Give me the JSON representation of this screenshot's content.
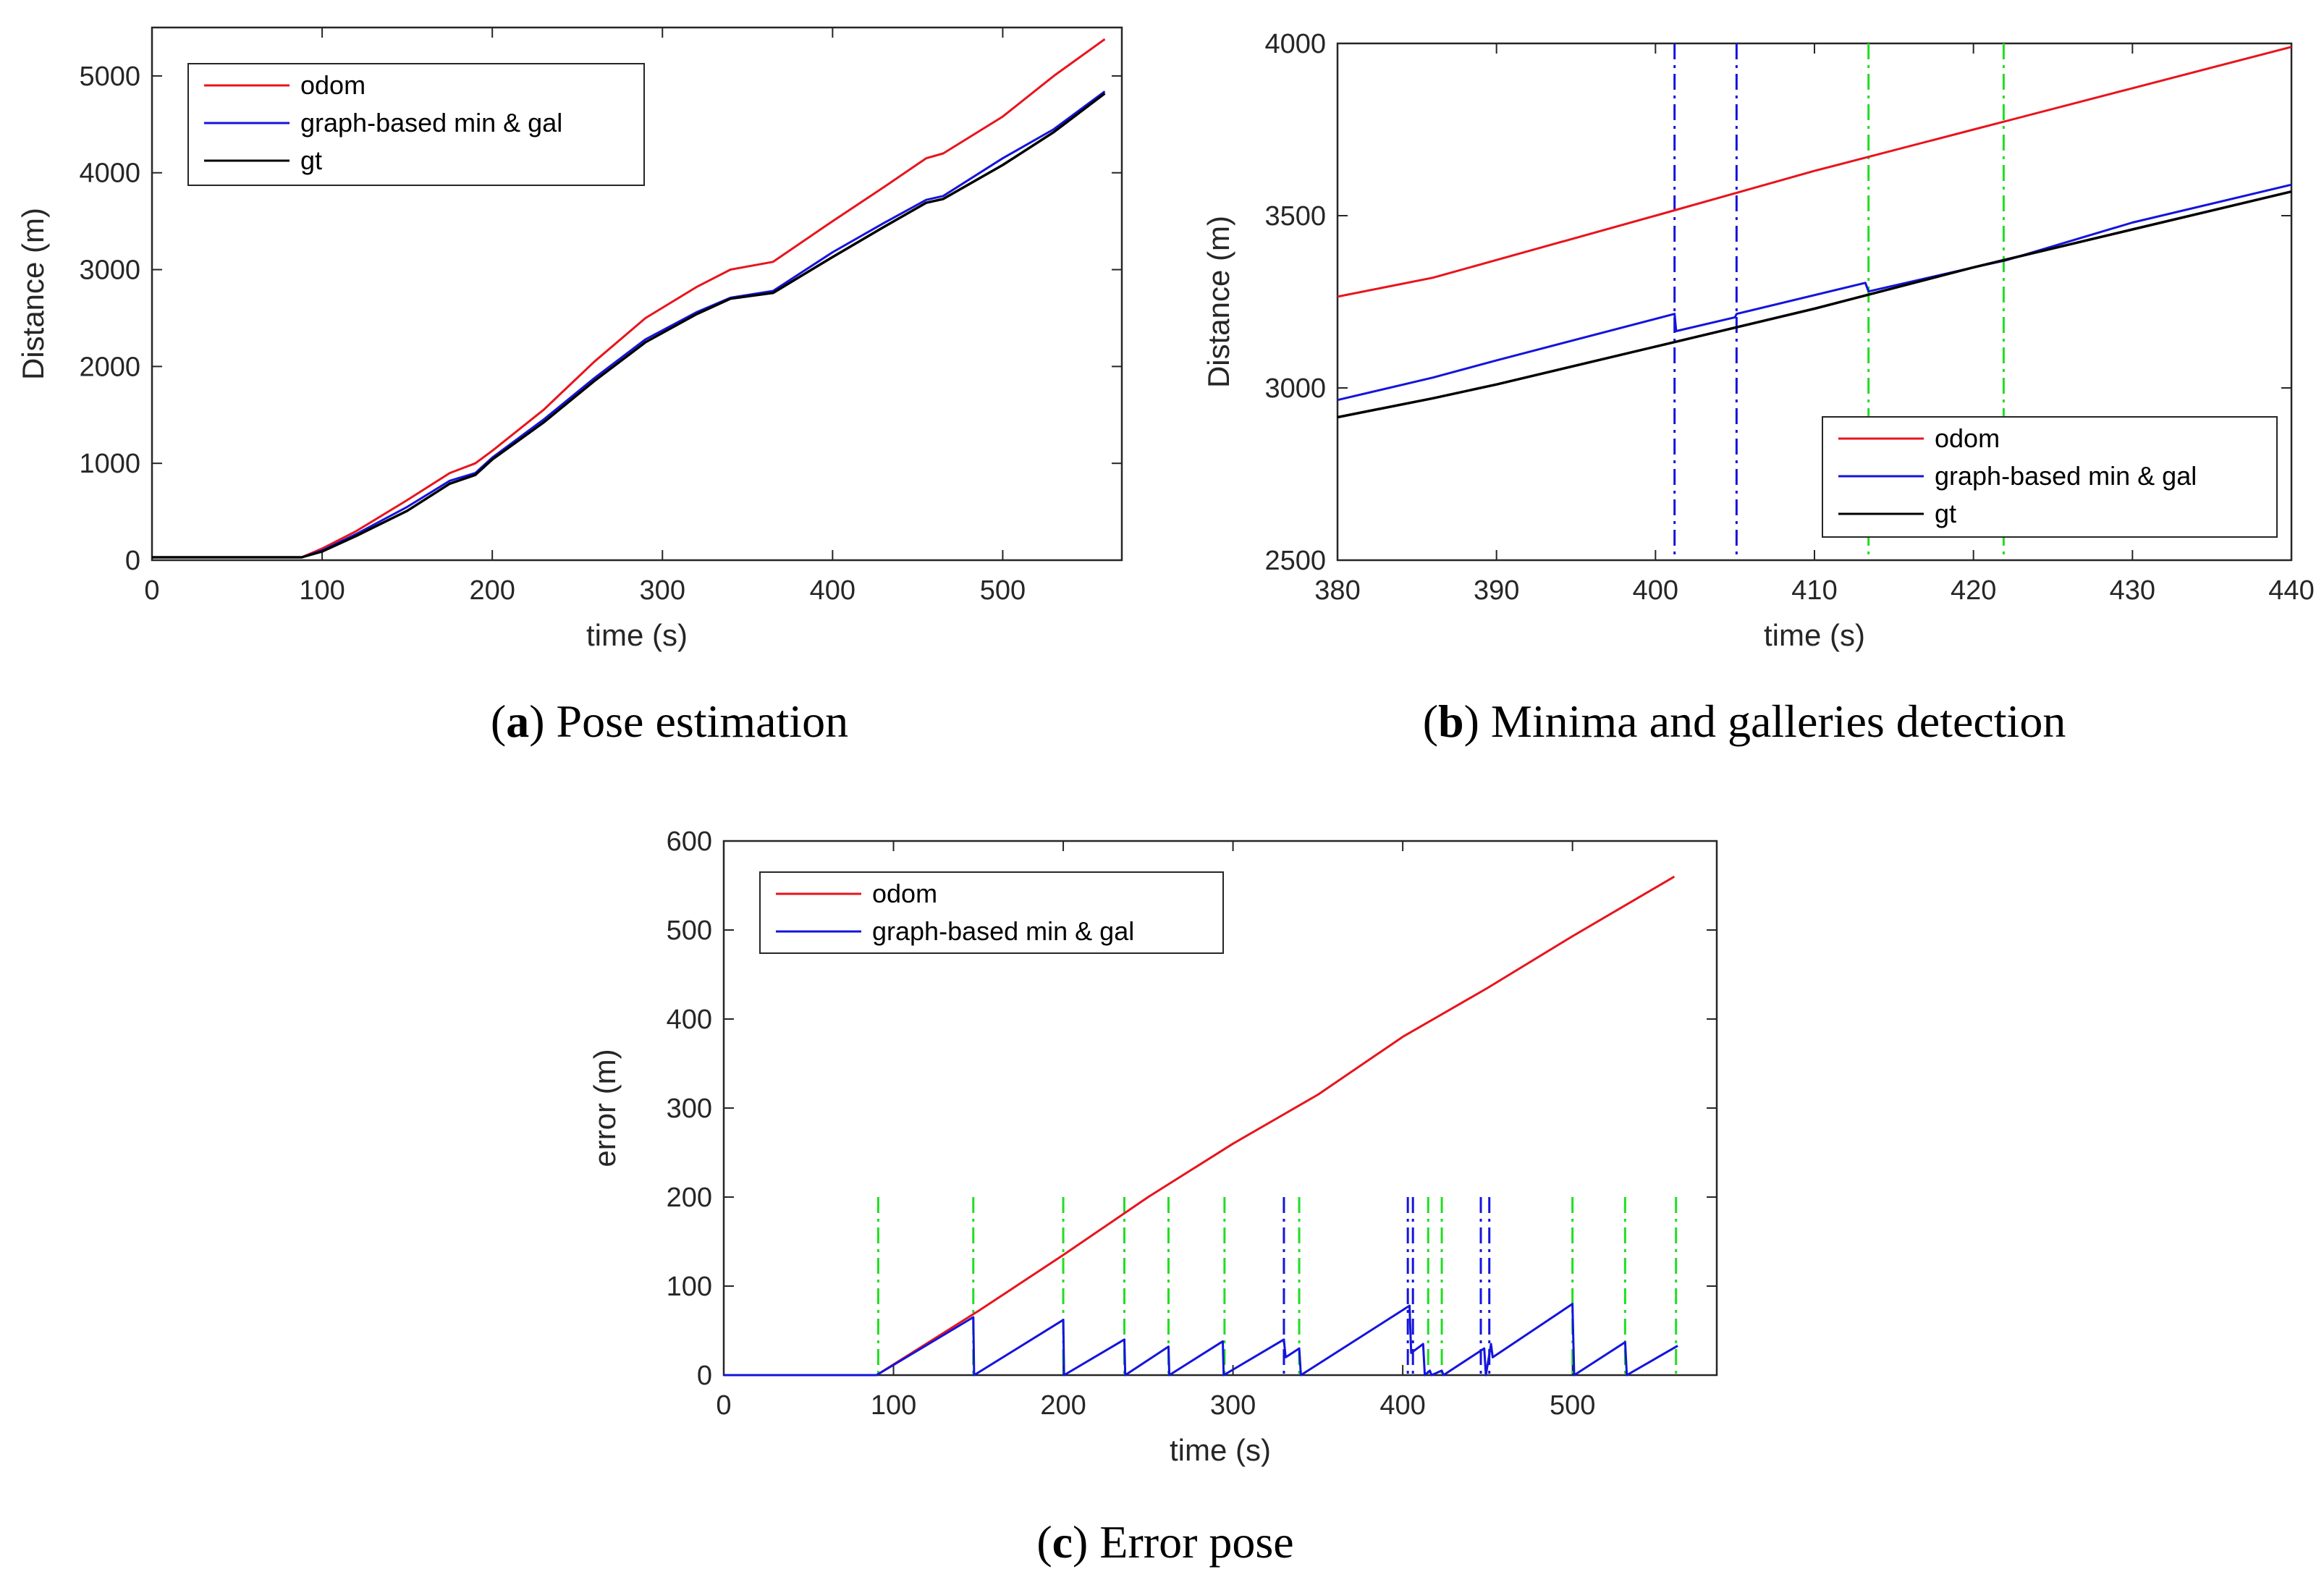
{
  "colors": {
    "odom": "#e8141c",
    "graph": "#1414dc",
    "gt": "#000000",
    "minima": "#1414dc",
    "gallery": "#22dd22",
    "axis": "#262626"
  },
  "captions": [
    {
      "letter": "a",
      "text": "Pose estimation"
    },
    {
      "letter": "b",
      "text": "Minima and galleries detection"
    },
    {
      "letter": "c",
      "text": "Error pose"
    }
  ],
  "chart_data": [
    {
      "id": "a",
      "type": "line",
      "xlabel": "time (s)",
      "ylabel": "Distance (m)",
      "xlim": [
        0,
        570
      ],
      "ylim": [
        0,
        5500
      ],
      "xticks": [
        0,
        100,
        200,
        300,
        400,
        500
      ],
      "yticks": [
        0,
        1000,
        2000,
        3000,
        4000,
        5000
      ],
      "legend_position": "top-left",
      "series": [
        {
          "name": "odom",
          "color_key": "odom",
          "x": [
            0,
            88,
            100,
            120,
            150,
            175,
            190,
            200,
            230,
            260,
            290,
            320,
            340,
            365,
            400,
            430,
            455,
            465,
            500,
            530,
            560
          ],
          "y": [
            30,
            30,
            120,
            300,
            620,
            900,
            1000,
            1130,
            1550,
            2050,
            2500,
            2820,
            3000,
            3080,
            3500,
            3850,
            4150,
            4200,
            4580,
            5000,
            5380
          ]
        },
        {
          "name": "graph-based min & gal",
          "color_key": "graph",
          "x": [
            0,
            88,
            100,
            120,
            150,
            175,
            190,
            200,
            230,
            260,
            290,
            320,
            340,
            365,
            400,
            430,
            455,
            465,
            500,
            530,
            560
          ],
          "y": [
            30,
            30,
            100,
            270,
            550,
            820,
            900,
            1060,
            1450,
            1880,
            2280,
            2560,
            2710,
            2780,
            3180,
            3480,
            3720,
            3760,
            4150,
            4450,
            4840
          ]
        },
        {
          "name": "gt",
          "color_key": "gt",
          "x": [
            0,
            88,
            100,
            120,
            150,
            175,
            190,
            200,
            230,
            260,
            290,
            320,
            340,
            365,
            400,
            430,
            455,
            465,
            500,
            530,
            560
          ],
          "y": [
            30,
            30,
            90,
            250,
            510,
            790,
            880,
            1040,
            1420,
            1850,
            2250,
            2540,
            2700,
            2760,
            3130,
            3440,
            3690,
            3730,
            4080,
            4420,
            4820
          ]
        }
      ]
    },
    {
      "id": "b",
      "type": "line",
      "xlabel": "time (s)",
      "ylabel": "Distance (m)",
      "xlim": [
        380,
        440
      ],
      "ylim": [
        2500,
        4000
      ],
      "xticks": [
        380,
        390,
        400,
        410,
        420,
        430,
        440
      ],
      "yticks": [
        2500,
        3000,
        3500,
        4000
      ],
      "legend_position": "bottom-right",
      "series": [
        {
          "name": "odom",
          "color_key": "odom",
          "x": [
            380,
            386,
            400,
            410,
            420,
            430,
            440
          ],
          "y": [
            3265,
            3320,
            3500,
            3630,
            3750,
            3870,
            3990
          ]
        },
        {
          "name": "graph-based min & gal",
          "color_key": "graph",
          "x": [
            380,
            386,
            390,
            401.2,
            401.3,
            405,
            405.1,
            413.2,
            413.4,
            420,
            422,
            430,
            440
          ],
          "y": [
            2965,
            3030,
            3080,
            3215,
            3165,
            3205,
            3215,
            3305,
            3280,
            3350,
            3370,
            3480,
            3590
          ]
        },
        {
          "name": "gt",
          "color_key": "gt",
          "x": [
            380,
            386,
            390,
            400,
            410,
            420,
            430,
            440
          ],
          "y": [
            2915,
            2970,
            3010,
            3120,
            3230,
            3350,
            3460,
            3570
          ]
        }
      ],
      "event_lines": [
        {
          "x": 401.2,
          "kind": "minima",
          "color_key": "minima"
        },
        {
          "x": 405.1,
          "kind": "minima",
          "color_key": "minima"
        },
        {
          "x": 413.4,
          "kind": "gallery",
          "color_key": "gallery"
        },
        {
          "x": 421.9,
          "kind": "gallery",
          "color_key": "gallery"
        }
      ]
    },
    {
      "id": "c",
      "type": "line",
      "xlabel": "time (s)",
      "ylabel": "error (m)",
      "xlim": [
        0,
        585
      ],
      "ylim": [
        0,
        600
      ],
      "xticks": [
        0,
        100,
        200,
        300,
        400,
        500
      ],
      "yticks": [
        0,
        100,
        200,
        300,
        400,
        500,
        600
      ],
      "legend_position": "top-left",
      "series": [
        {
          "name": "odom",
          "color_key": "odom",
          "x": [
            0,
            90,
            150,
            200,
            250,
            300,
            350,
            400,
            450,
            500,
            560
          ],
          "y": [
            0,
            0,
            72,
            135,
            200,
            260,
            315,
            380,
            435,
            493,
            560
          ]
        },
        {
          "name": "graph-based min & gal",
          "color_key": "graph",
          "x": [
            0,
            90,
            147,
            147.5,
            200,
            200.5,
            236,
            236.5,
            262,
            262.5,
            294,
            294.5,
            330,
            331,
            339,
            340,
            404,
            405,
            412,
            413,
            416,
            417,
            423,
            424,
            448,
            449,
            452,
            453,
            500,
            501,
            531,
            532,
            562
          ],
          "y": [
            0,
            0,
            65,
            0,
            62,
            0,
            40,
            0,
            32,
            0,
            38,
            0,
            40,
            20,
            30,
            0,
            78,
            25,
            35,
            0,
            5,
            0,
            5,
            0,
            30,
            0,
            35,
            20,
            80,
            0,
            37,
            0,
            33
          ]
        }
      ],
      "event_lines": [
        {
          "x": 91,
          "kind": "gallery",
          "color_key": "gallery"
        },
        {
          "x": 147,
          "kind": "gallery",
          "color_key": "gallery"
        },
        {
          "x": 200,
          "kind": "gallery",
          "color_key": "gallery"
        },
        {
          "x": 236,
          "kind": "gallery",
          "color_key": "gallery"
        },
        {
          "x": 262,
          "kind": "gallery",
          "color_key": "gallery"
        },
        {
          "x": 295,
          "kind": "gallery",
          "color_key": "gallery"
        },
        {
          "x": 330,
          "kind": "minima",
          "color_key": "minima"
        },
        {
          "x": 339,
          "kind": "gallery",
          "color_key": "gallery"
        },
        {
          "x": 403,
          "kind": "minima",
          "color_key": "minima"
        },
        {
          "x": 406,
          "kind": "minima",
          "color_key": "minima"
        },
        {
          "x": 415,
          "kind": "gallery",
          "color_key": "gallery"
        },
        {
          "x": 423,
          "kind": "gallery",
          "color_key": "gallery"
        },
        {
          "x": 446,
          "kind": "minima",
          "color_key": "minima"
        },
        {
          "x": 451,
          "kind": "minima",
          "color_key": "minima"
        },
        {
          "x": 500,
          "kind": "gallery",
          "color_key": "gallery"
        },
        {
          "x": 531,
          "kind": "gallery",
          "color_key": "gallery"
        },
        {
          "x": 561,
          "kind": "gallery",
          "color_key": "gallery"
        }
      ]
    }
  ]
}
